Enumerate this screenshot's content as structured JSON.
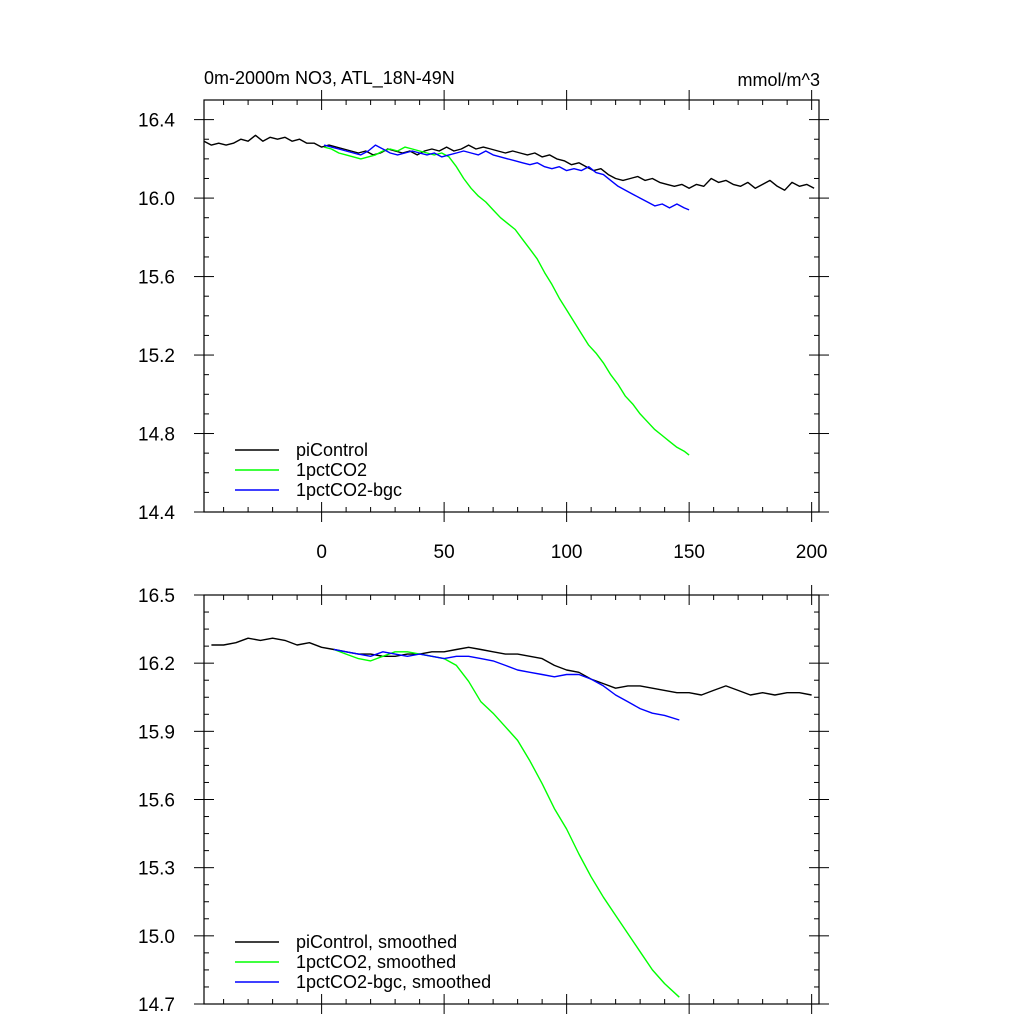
{
  "chart_data": [
    {
      "type": "line",
      "title": "0m-2000m NO3, ATL_18N-49N",
      "units": "mmol/m^3",
      "xlim": [
        -48,
        203
      ],
      "ylim": [
        14.4,
        16.5
      ],
      "xticks": [
        0,
        50,
        100,
        150,
        200
      ],
      "xtick_labels": [
        "0",
        "50",
        "100",
        "150",
        "200"
      ],
      "yticks": [
        14.4,
        14.8,
        15.2,
        15.6,
        16.0,
        16.4
      ],
      "ytick_labels": [
        "14.4",
        "14.8",
        "15.2",
        "15.6",
        "16.0",
        "16.4"
      ],
      "grid": false,
      "legend_position": "bottom-left",
      "series": [
        {
          "name": "piControl",
          "color": "#000000",
          "x": [
            -48,
            -45,
            -42,
            -39,
            -36,
            -33,
            -30,
            -27,
            -24,
            -21,
            -18,
            -15,
            -12,
            -9,
            -6,
            -3,
            0,
            3,
            6,
            9,
            12,
            15,
            18,
            21,
            24,
            27,
            30,
            33,
            36,
            39,
            42,
            45,
            48,
            51,
            54,
            57,
            60,
            63,
            66,
            69,
            72,
            75,
            78,
            81,
            84,
            87,
            90,
            93,
            96,
            99,
            102,
            105,
            108,
            111,
            114,
            117,
            120,
            123,
            126,
            129,
            132,
            135,
            138,
            141,
            144,
            147,
            150,
            153,
            156,
            159,
            162,
            165,
            168,
            171,
            174,
            177,
            180,
            183,
            186,
            189,
            192,
            195,
            198,
            201
          ],
          "y": [
            16.29,
            16.27,
            16.28,
            16.27,
            16.28,
            16.3,
            16.29,
            16.32,
            16.29,
            16.31,
            16.3,
            16.31,
            16.29,
            16.3,
            16.28,
            16.28,
            16.26,
            16.27,
            16.26,
            16.25,
            16.24,
            16.23,
            16.24,
            16.22,
            16.23,
            16.25,
            16.24,
            16.23,
            16.24,
            16.22,
            16.24,
            16.25,
            16.24,
            16.26,
            16.24,
            16.25,
            16.27,
            16.25,
            16.26,
            16.25,
            16.24,
            16.23,
            16.24,
            16.23,
            16.22,
            16.23,
            16.21,
            16.22,
            16.2,
            16.19,
            16.17,
            16.18,
            16.16,
            16.14,
            16.15,
            16.12,
            16.1,
            16.09,
            16.1,
            16.11,
            16.09,
            16.1,
            16.08,
            16.07,
            16.06,
            16.07,
            16.05,
            16.07,
            16.06,
            16.1,
            16.08,
            16.09,
            16.07,
            16.06,
            16.08,
            16.05,
            16.07,
            16.09,
            16.06,
            16.04,
            16.08,
            16.06,
            16.07,
            16.05
          ]
        },
        {
          "name": "1pctCO2",
          "color": "#00ff00",
          "x": [
            1,
            4,
            7,
            10,
            13,
            16,
            19,
            22,
            25,
            28,
            31,
            34,
            37,
            40,
            43,
            46,
            49,
            52,
            55,
            58,
            61,
            64,
            67,
            70,
            73,
            76,
            79,
            82,
            85,
            88,
            91,
            94,
            97,
            100,
            103,
            106,
            109,
            112,
            115,
            118,
            121,
            124,
            127,
            130,
            133,
            136,
            139,
            142,
            145,
            148,
            150
          ],
          "y": [
            16.26,
            16.25,
            16.23,
            16.22,
            16.21,
            16.2,
            16.21,
            16.22,
            16.24,
            16.25,
            16.24,
            16.26,
            16.25,
            16.24,
            16.23,
            16.22,
            16.23,
            16.21,
            16.16,
            16.1,
            16.05,
            16.01,
            15.98,
            15.94,
            15.9,
            15.87,
            15.84,
            15.79,
            15.74,
            15.69,
            15.62,
            15.56,
            15.49,
            15.43,
            15.37,
            15.31,
            15.25,
            15.21,
            15.16,
            15.1,
            15.05,
            14.99,
            14.95,
            14.9,
            14.86,
            14.82,
            14.79,
            14.76,
            14.73,
            14.71,
            14.69
          ]
        },
        {
          "name": "1pctCO2-bgc",
          "color": "#0000ff",
          "x": [
            1,
            4,
            7,
            10,
            13,
            16,
            19,
            22,
            25,
            28,
            31,
            34,
            37,
            40,
            43,
            46,
            49,
            52,
            55,
            58,
            61,
            64,
            67,
            70,
            73,
            76,
            79,
            82,
            85,
            88,
            91,
            94,
            97,
            100,
            103,
            106,
            109,
            112,
            115,
            118,
            121,
            124,
            127,
            130,
            133,
            136,
            139,
            142,
            145,
            148,
            150
          ],
          "y": [
            16.27,
            16.26,
            16.25,
            16.24,
            16.23,
            16.22,
            16.24,
            16.27,
            16.25,
            16.23,
            16.22,
            16.23,
            16.24,
            16.23,
            16.22,
            16.23,
            16.21,
            16.22,
            16.23,
            16.24,
            16.23,
            16.22,
            16.24,
            16.22,
            16.21,
            16.2,
            16.19,
            16.18,
            16.17,
            16.18,
            16.16,
            16.15,
            16.16,
            16.14,
            16.15,
            16.14,
            16.16,
            16.13,
            16.12,
            16.09,
            16.06,
            16.04,
            16.02,
            16.0,
            15.98,
            15.96,
            15.97,
            15.95,
            15.97,
            15.95,
            15.94
          ]
        }
      ]
    },
    {
      "type": "line",
      "title": "",
      "xlim": [
        -48,
        203
      ],
      "ylim": [
        14.7,
        16.5
      ],
      "xticks": [
        0,
        50,
        100,
        150,
        200
      ],
      "yticks": [
        14.7,
        15.0,
        15.3,
        15.6,
        15.9,
        16.2,
        16.5
      ],
      "ytick_labels": [
        "14.7",
        "15.0",
        "15.3",
        "15.6",
        "15.9",
        "16.2",
        "16.5"
      ],
      "grid": false,
      "legend_position": "bottom-left",
      "series": [
        {
          "name": "piControl, smoothed",
          "color": "#000000",
          "x": [
            -45,
            -40,
            -35,
            -30,
            -25,
            -20,
            -15,
            -10,
            -5,
            0,
            5,
            10,
            15,
            20,
            25,
            30,
            35,
            40,
            45,
            50,
            55,
            60,
            65,
            70,
            75,
            80,
            85,
            90,
            95,
            100,
            105,
            110,
            115,
            120,
            125,
            130,
            135,
            140,
            145,
            150,
            155,
            160,
            165,
            170,
            175,
            180,
            185,
            190,
            195,
            200
          ],
          "y": [
            16.28,
            16.28,
            16.29,
            16.31,
            16.3,
            16.31,
            16.3,
            16.28,
            16.29,
            16.27,
            16.26,
            16.25,
            16.24,
            16.24,
            16.23,
            16.23,
            16.24,
            16.24,
            16.25,
            16.25,
            16.26,
            16.27,
            16.26,
            16.25,
            16.24,
            16.24,
            16.23,
            16.22,
            16.19,
            16.17,
            16.16,
            16.13,
            16.11,
            16.09,
            16.1,
            16.1,
            16.09,
            16.08,
            16.07,
            16.07,
            16.06,
            16.08,
            16.1,
            16.08,
            16.06,
            16.07,
            16.06,
            16.07,
            16.07,
            16.06
          ]
        },
        {
          "name": "1pctCO2, smoothed",
          "color": "#00ff00",
          "x": [
            5,
            10,
            15,
            20,
            25,
            30,
            35,
            40,
            45,
            50,
            55,
            60,
            65,
            70,
            75,
            80,
            85,
            90,
            95,
            100,
            105,
            110,
            115,
            120,
            125,
            130,
            135,
            140,
            146
          ],
          "y": [
            16.26,
            16.24,
            16.22,
            16.21,
            16.23,
            16.25,
            16.25,
            16.24,
            16.23,
            16.22,
            16.19,
            16.12,
            16.03,
            15.98,
            15.92,
            15.86,
            15.77,
            15.67,
            15.56,
            15.47,
            15.36,
            15.26,
            15.17,
            15.09,
            15.01,
            14.93,
            14.85,
            14.79,
            14.73
          ]
        },
        {
          "name": "1pctCO2-bgc, smoothed",
          "color": "#0000ff",
          "x": [
            5,
            10,
            15,
            20,
            25,
            30,
            35,
            40,
            45,
            50,
            55,
            60,
            65,
            70,
            75,
            80,
            85,
            90,
            95,
            100,
            105,
            110,
            115,
            120,
            125,
            130,
            135,
            140,
            146
          ],
          "y": [
            16.26,
            16.25,
            16.24,
            16.23,
            16.25,
            16.24,
            16.23,
            16.24,
            16.23,
            16.22,
            16.23,
            16.23,
            16.22,
            16.21,
            16.19,
            16.17,
            16.16,
            16.15,
            16.14,
            16.15,
            16.15,
            16.13,
            16.1,
            16.06,
            16.03,
            16.0,
            15.98,
            15.97,
            15.95
          ]
        }
      ]
    }
  ]
}
